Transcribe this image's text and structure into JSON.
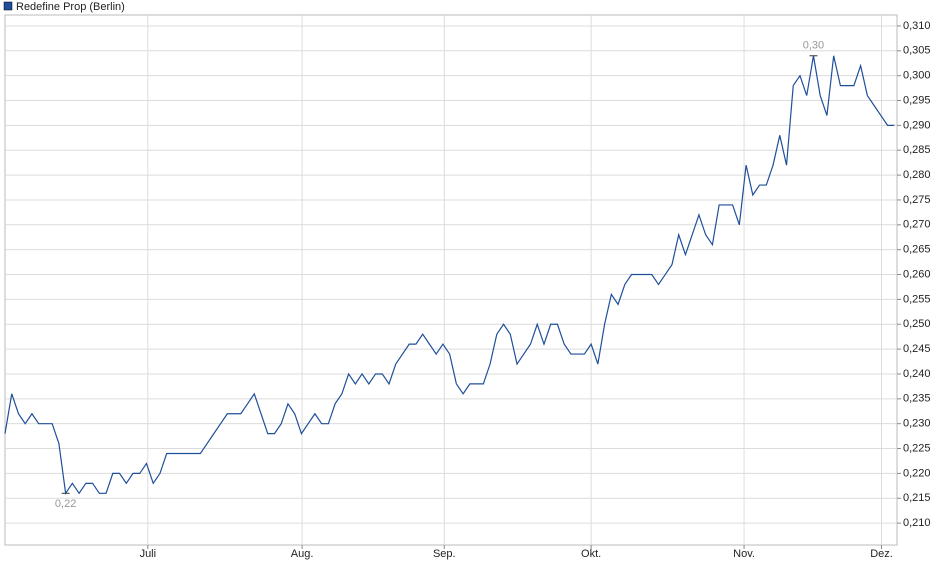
{
  "chart_data": {
    "type": "line",
    "series": [
      {
        "name": "Redefine Prop (Berlin)",
        "color": "#1f4f9a",
        "values": [
          0.228,
          0.236,
          0.232,
          0.23,
          0.232,
          0.23,
          0.23,
          0.23,
          0.226,
          0.216,
          0.218,
          0.216,
          0.218,
          0.218,
          0.216,
          0.216,
          0.22,
          0.22,
          0.218,
          0.22,
          0.22,
          0.222,
          0.218,
          0.22,
          0.224,
          0.224,
          0.224,
          0.224,
          0.224,
          0.224,
          0.226,
          0.228,
          0.23,
          0.232,
          0.232,
          0.232,
          0.234,
          0.236,
          0.232,
          0.228,
          0.228,
          0.23,
          0.234,
          0.232,
          0.228,
          0.23,
          0.232,
          0.23,
          0.23,
          0.234,
          0.236,
          0.24,
          0.238,
          0.24,
          0.238,
          0.24,
          0.24,
          0.238,
          0.242,
          0.244,
          0.246,
          0.246,
          0.248,
          0.246,
          0.244,
          0.246,
          0.244,
          0.238,
          0.236,
          0.238,
          0.238,
          0.238,
          0.242,
          0.248,
          0.25,
          0.248,
          0.242,
          0.244,
          0.246,
          0.25,
          0.246,
          0.25,
          0.25,
          0.246,
          0.244,
          0.244,
          0.244,
          0.246,
          0.242,
          0.25,
          0.256,
          0.254,
          0.258,
          0.26,
          0.26,
          0.26,
          0.26,
          0.258,
          0.26,
          0.262,
          0.268,
          0.264,
          0.268,
          0.272,
          0.268,
          0.266,
          0.274,
          0.274,
          0.274,
          0.27,
          0.282,
          0.276,
          0.278,
          0.278,
          0.282,
          0.288,
          0.282,
          0.298,
          0.3,
          0.296,
          0.304,
          0.296,
          0.292,
          0.304,
          0.298,
          0.298,
          0.298,
          0.302,
          0.296,
          0.294,
          0.292,
          0.29,
          0.29
        ]
      }
    ],
    "xlim": [
      0,
      132.4
    ],
    "xticks": [
      {
        "value": 21.2,
        "label": "Juli"
      },
      {
        "value": 44.1,
        "label": "Aug."
      },
      {
        "value": 65.2,
        "label": "Sep."
      },
      {
        "value": 87.0,
        "label": "Okt."
      },
      {
        "value": 109.7,
        "label": "Nov."
      },
      {
        "value": 130.1,
        "label": "Dez."
      }
    ],
    "ylim": [
      0.2056,
      0.3122
    ],
    "yticks": [
      {
        "value": 0.21,
        "label": "0,210"
      },
      {
        "value": 0.215,
        "label": "0,215"
      },
      {
        "value": 0.22,
        "label": "0,220"
      },
      {
        "value": 0.225,
        "label": "0,225"
      },
      {
        "value": 0.23,
        "label": "0,230"
      },
      {
        "value": 0.235,
        "label": "0,235"
      },
      {
        "value": 0.24,
        "label": "0,240"
      },
      {
        "value": 0.245,
        "label": "0,245"
      },
      {
        "value": 0.25,
        "label": "0,250"
      },
      {
        "value": 0.255,
        "label": "0,255"
      },
      {
        "value": 0.26,
        "label": "0,260"
      },
      {
        "value": 0.265,
        "label": "0,265"
      },
      {
        "value": 0.27,
        "label": "0,270"
      },
      {
        "value": 0.275,
        "label": "0,275"
      },
      {
        "value": 0.28,
        "label": "0,280"
      },
      {
        "value": 0.285,
        "label": "0,285"
      },
      {
        "value": 0.29,
        "label": "0,290"
      },
      {
        "value": 0.295,
        "label": "0,295"
      },
      {
        "value": 0.3,
        "label": "0,300"
      },
      {
        "value": 0.305,
        "label": "0,305"
      },
      {
        "value": 0.31,
        "label": "0,310"
      }
    ],
    "annotations": [
      {
        "x": 9,
        "value": 0.216,
        "label": "0,22"
      },
      {
        "x": 120,
        "value": 0.304,
        "label": "0,30"
      }
    ],
    "grid": true
  }
}
